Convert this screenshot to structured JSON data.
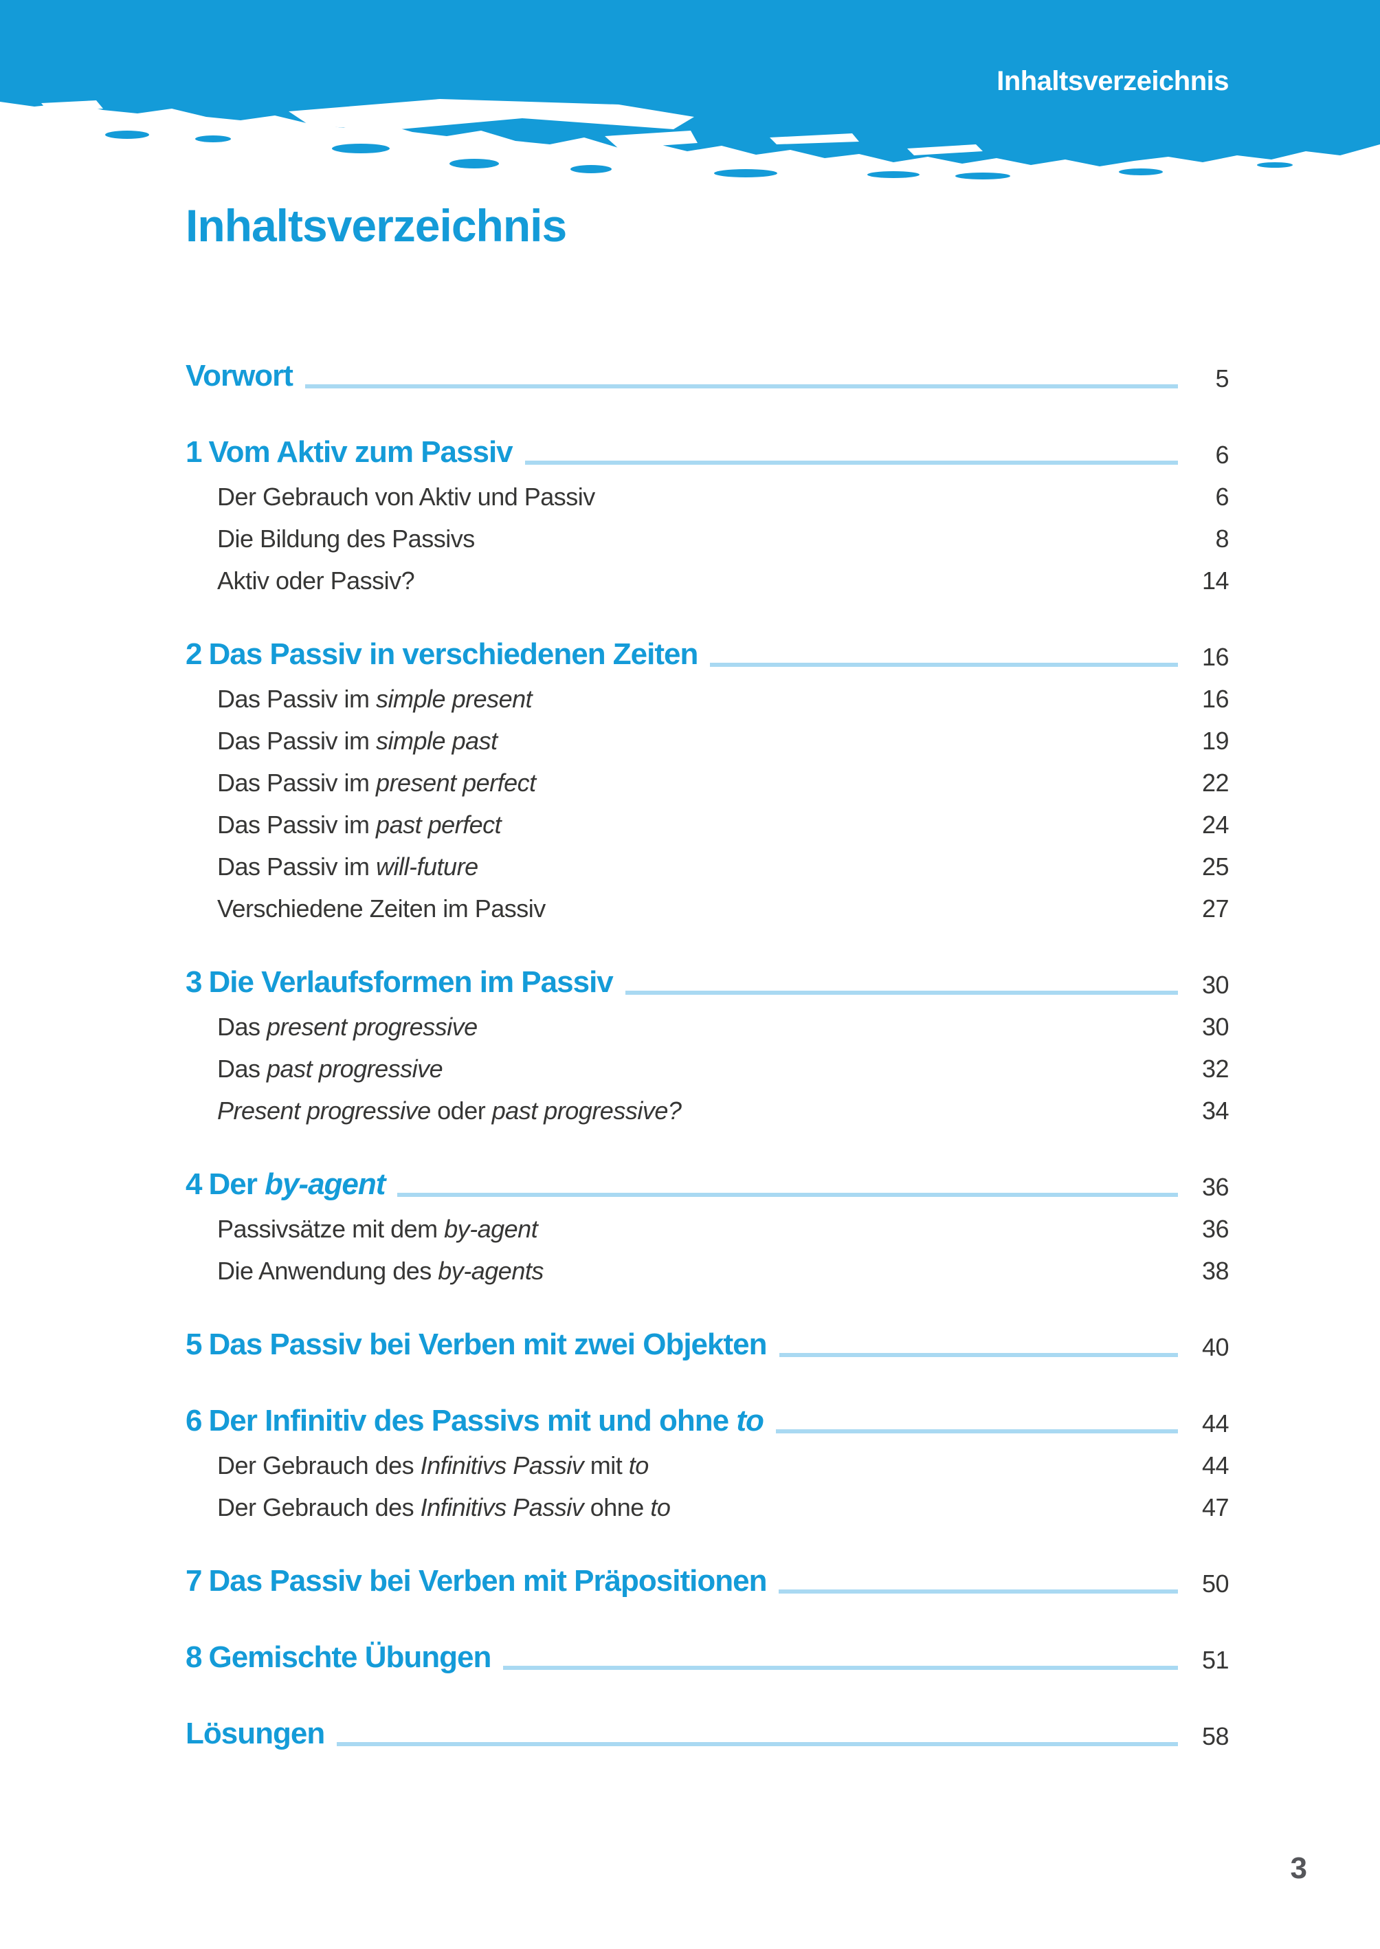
{
  "header": {
    "running_head": "Inhaltsverzeichnis"
  },
  "main": {
    "title": "Inhaltsverzeichnis"
  },
  "footer": {
    "page_number": "3"
  },
  "colors": {
    "accent_blue": "#149bd8",
    "leader_blue": "#a9d9f2",
    "body_text": "#363635",
    "folio_gray": "#55565a",
    "band_blue": "#149bd8"
  },
  "toc": {
    "entries": [
      {
        "level": "top",
        "segments": [
          {
            "t": "Vorwort"
          }
        ],
        "page": "5",
        "leader": true
      },
      {
        "level": "chapter",
        "number": "1",
        "segments": [
          {
            "t": "Vom Aktiv zum Passiv"
          }
        ],
        "page": "6",
        "leader": true
      },
      {
        "level": "sub",
        "segments": [
          {
            "t": "Der Gebrauch von Aktiv und Passiv"
          }
        ],
        "page": "6"
      },
      {
        "level": "sub",
        "segments": [
          {
            "t": "Die Bildung des Passivs"
          }
        ],
        "page": "8"
      },
      {
        "level": "sub",
        "segments": [
          {
            "t": "Aktiv oder Passiv?"
          }
        ],
        "page": "14"
      },
      {
        "level": "chapter",
        "number": "2",
        "segments": [
          {
            "t": "Das Passiv in verschiedenen Zeiten"
          }
        ],
        "page": "16",
        "leader": true
      },
      {
        "level": "sub",
        "segments": [
          {
            "t": "Das Passiv im "
          },
          {
            "t": "simple present",
            "i": true
          }
        ],
        "page": "16"
      },
      {
        "level": "sub",
        "segments": [
          {
            "t": "Das Passiv im "
          },
          {
            "t": "simple past",
            "i": true
          }
        ],
        "page": "19"
      },
      {
        "level": "sub",
        "segments": [
          {
            "t": "Das Passiv im "
          },
          {
            "t": "present perfect",
            "i": true
          }
        ],
        "page": "22"
      },
      {
        "level": "sub",
        "segments": [
          {
            "t": "Das Passiv im "
          },
          {
            "t": "past perfect",
            "i": true
          }
        ],
        "page": "24"
      },
      {
        "level": "sub",
        "segments": [
          {
            "t": "Das Passiv im "
          },
          {
            "t": "will-future",
            "i": true
          }
        ],
        "page": "25"
      },
      {
        "level": "sub",
        "segments": [
          {
            "t": "Verschiedene Zeiten im Passiv"
          }
        ],
        "page": "27"
      },
      {
        "level": "chapter",
        "number": "3",
        "segments": [
          {
            "t": "Die Verlaufsformen im Passiv"
          }
        ],
        "page": "30",
        "leader": true
      },
      {
        "level": "sub",
        "segments": [
          {
            "t": "Das "
          },
          {
            "t": "present progressive",
            "i": true
          }
        ],
        "page": "30"
      },
      {
        "level": "sub",
        "segments": [
          {
            "t": "Das "
          },
          {
            "t": "past progressive",
            "i": true
          }
        ],
        "page": "32"
      },
      {
        "level": "sub",
        "segments": [
          {
            "t": "Present progressive",
            "i": true
          },
          {
            "t": " oder "
          },
          {
            "t": "past progressive?",
            "i": true
          }
        ],
        "page": "34"
      },
      {
        "level": "chapter",
        "number": "4",
        "segments": [
          {
            "t": "Der "
          },
          {
            "t": "by-agent",
            "i": true
          }
        ],
        "page": "36",
        "leader": true
      },
      {
        "level": "sub",
        "segments": [
          {
            "t": "Passivsätze mit dem "
          },
          {
            "t": "by-agent",
            "i": true
          }
        ],
        "page": "36"
      },
      {
        "level": "sub",
        "segments": [
          {
            "t": "Die Anwendung des "
          },
          {
            "t": "by-agents",
            "i": true
          }
        ],
        "page": "38"
      },
      {
        "level": "chapter",
        "number": "5",
        "segments": [
          {
            "t": "Das Passiv bei Verben mit zwei Objekten"
          }
        ],
        "page": "40",
        "leader": true
      },
      {
        "level": "chapter",
        "number": "6",
        "segments": [
          {
            "t": "Der Infinitiv des Passivs mit und ohne "
          },
          {
            "t": "to",
            "i": true
          }
        ],
        "page": "44",
        "leader": true
      },
      {
        "level": "sub",
        "segments": [
          {
            "t": "Der Gebrauch des "
          },
          {
            "t": "Infinitivs Passiv",
            "i": true
          },
          {
            "t": " mit "
          },
          {
            "t": "to",
            "i": true
          }
        ],
        "page": "44"
      },
      {
        "level": "sub",
        "segments": [
          {
            "t": "Der Gebrauch des "
          },
          {
            "t": "Infinitivs Passiv",
            "i": true
          },
          {
            "t": " ohne "
          },
          {
            "t": "to",
            "i": true
          }
        ],
        "page": "47"
      },
      {
        "level": "chapter",
        "number": "7",
        "segments": [
          {
            "t": "Das Passiv bei Verben mit Präpositionen"
          }
        ],
        "page": "50",
        "leader": true
      },
      {
        "level": "chapter",
        "number": "8",
        "segments": [
          {
            "t": "Gemischte Übungen"
          }
        ],
        "page": "51",
        "leader": true
      },
      {
        "level": "top",
        "segments": [
          {
            "t": "Lösungen"
          }
        ],
        "page": "58",
        "leader": true
      }
    ]
  }
}
